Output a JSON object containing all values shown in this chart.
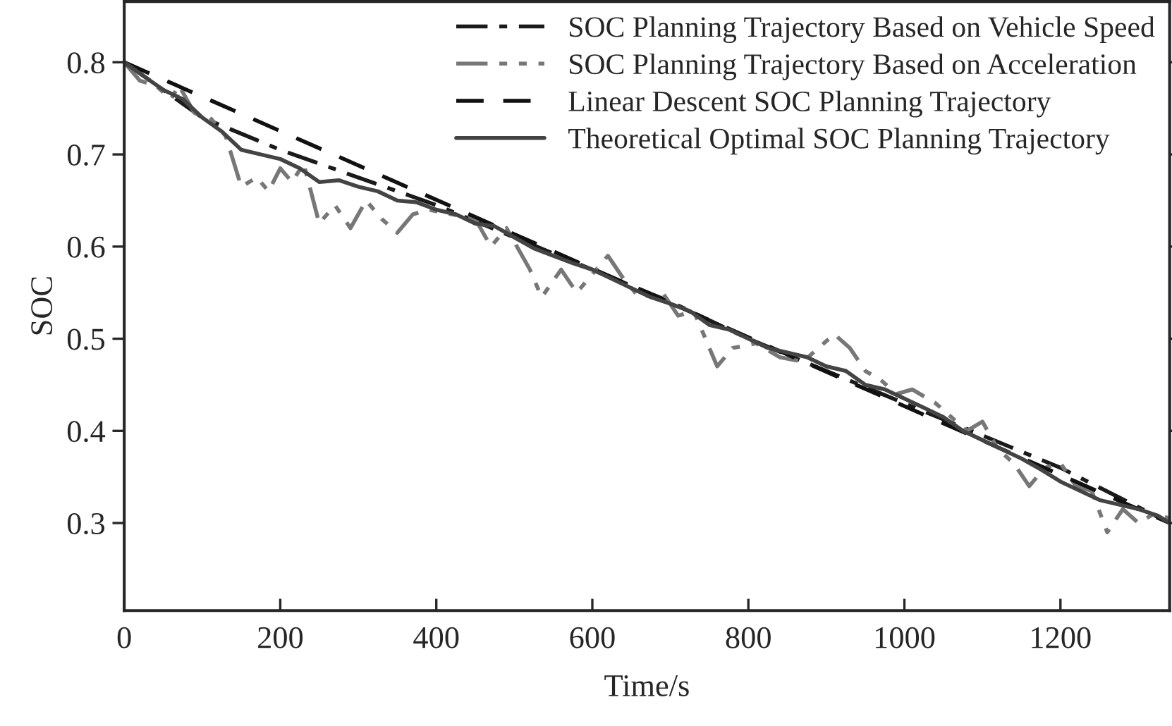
{
  "chart_data": {
    "type": "line",
    "xlabel": "Time/s",
    "ylabel": "SOC",
    "xlim": [
      0,
      1340
    ],
    "xticks": [
      0,
      200,
      400,
      600,
      800,
      1000,
      1200
    ],
    "ylim": [
      0.205,
      0.866
    ],
    "yticks": [
      0.3,
      0.4,
      0.5,
      0.6,
      0.7,
      0.8
    ],
    "legend": "top right",
    "series": [
      {
        "name": "SOC Planning Trajectory Based on Vehicle Speed",
        "color": "#1a1a1a",
        "line_style": "dashdot",
        "x": [
          0,
          100,
          200,
          300,
          400,
          500,
          600,
          700,
          800,
          900,
          1000,
          1100,
          1200,
          1340
        ],
        "values": [
          0.8,
          0.74,
          0.705,
          0.675,
          0.645,
          0.61,
          0.575,
          0.54,
          0.5,
          0.465,
          0.43,
          0.395,
          0.36,
          0.3
        ]
      },
      {
        "name": "SOC Planning Trajectory Based on Acceleration",
        "color": "#777777",
        "line_style": "dashdotdot",
        "x": [
          0,
          20,
          40,
          60,
          70,
          90,
          110,
          130,
          150,
          170,
          185,
          200,
          215,
          230,
          250,
          270,
          290,
          310,
          330,
          350,
          370,
          390,
          420,
          450,
          470,
          490,
          520,
          535,
          560,
          580,
          600,
          620,
          640,
          660,
          690,
          710,
          730,
          760,
          780,
          810,
          840,
          870,
          890,
          910,
          930,
          950,
          970,
          990,
          1010,
          1040,
          1060,
          1080,
          1100,
          1120,
          1140,
          1160,
          1180,
          1200,
          1220,
          1240,
          1260,
          1280,
          1300,
          1320,
          1340
        ],
        "values": [
          0.8,
          0.78,
          0.775,
          0.76,
          0.775,
          0.745,
          0.74,
          0.72,
          0.665,
          0.675,
          0.66,
          0.685,
          0.67,
          0.69,
          0.625,
          0.645,
          0.62,
          0.65,
          0.63,
          0.615,
          0.635,
          0.64,
          0.635,
          0.63,
          0.6,
          0.62,
          0.575,
          0.545,
          0.575,
          0.55,
          0.57,
          0.59,
          0.565,
          0.545,
          0.55,
          0.525,
          0.53,
          0.47,
          0.49,
          0.495,
          0.48,
          0.475,
          0.49,
          0.505,
          0.49,
          0.465,
          0.455,
          0.44,
          0.445,
          0.43,
          0.415,
          0.4,
          0.41,
          0.38,
          0.365,
          0.34,
          0.36,
          0.365,
          0.34,
          0.335,
          0.29,
          0.315,
          0.3,
          0.31,
          0.305
        ]
      },
      {
        "name": "Linear Descent SOC Planning Trajectory",
        "color": "#111111",
        "line_style": "dashed",
        "x": [
          0,
          1340
        ],
        "values": [
          0.8,
          0.3
        ]
      },
      {
        "name": "Theoretical Optimal SOC Planning Trajectory",
        "color": "#444444",
        "line_style": "solid",
        "x": [
          0,
          25,
          50,
          75,
          100,
          125,
          150,
          175,
          200,
          225,
          250,
          275,
          300,
          325,
          350,
          375,
          400,
          425,
          450,
          475,
          500,
          525,
          550,
          575,
          600,
          625,
          650,
          675,
          700,
          725,
          750,
          775,
          800,
          825,
          850,
          875,
          900,
          925,
          950,
          975,
          1000,
          1025,
          1050,
          1075,
          1100,
          1125,
          1150,
          1175,
          1200,
          1225,
          1250,
          1275,
          1300,
          1325,
          1340
        ],
        "values": [
          0.8,
          0.785,
          0.77,
          0.76,
          0.74,
          0.725,
          0.705,
          0.7,
          0.695,
          0.685,
          0.67,
          0.672,
          0.665,
          0.66,
          0.65,
          0.648,
          0.64,
          0.635,
          0.625,
          0.622,
          0.61,
          0.598,
          0.59,
          0.582,
          0.575,
          0.565,
          0.555,
          0.545,
          0.538,
          0.53,
          0.515,
          0.51,
          0.5,
          0.49,
          0.485,
          0.48,
          0.47,
          0.465,
          0.45,
          0.445,
          0.435,
          0.425,
          0.415,
          0.4,
          0.39,
          0.38,
          0.37,
          0.358,
          0.345,
          0.335,
          0.325,
          0.32,
          0.315,
          0.308,
          0.3
        ]
      }
    ]
  }
}
